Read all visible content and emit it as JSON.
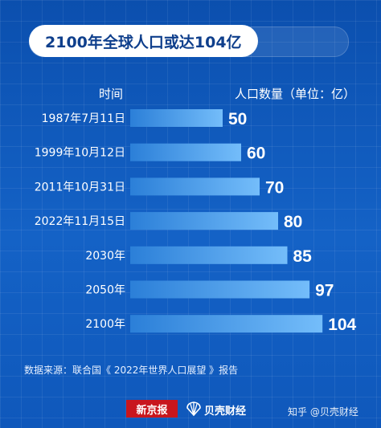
{
  "title": "2100年全球人口或达104亿",
  "source": "数据来源：联合国《 2022年世界人口展望 》报告",
  "footer": {
    "logo_xinjingbao": "新京报",
    "logo_beike": "贝壳财经",
    "watermark": "知乎 @贝壳财经"
  },
  "colors": {
    "background": "#0d55b8",
    "bar_start": "#2b7fd8",
    "bar_end": "#74bdfa",
    "title_text": "#0f3f8c",
    "brand_red": "#c8161d"
  },
  "chart_data": {
    "type": "bar",
    "orientation": "horizontal",
    "xlabel": "时间",
    "ylabel": "人口数量（单位：亿）",
    "categories": [
      "1987年7月11日",
      "1999年10月12日",
      "2011年10月31日",
      "2022年11月15日",
      "2030年",
      "2050年",
      "2100年"
    ],
    "values": [
      50,
      60,
      70,
      80,
      85,
      97,
      104
    ],
    "data_labels": [
      "50",
      "60",
      "70",
      "80",
      "85",
      "97",
      "104"
    ]
  }
}
